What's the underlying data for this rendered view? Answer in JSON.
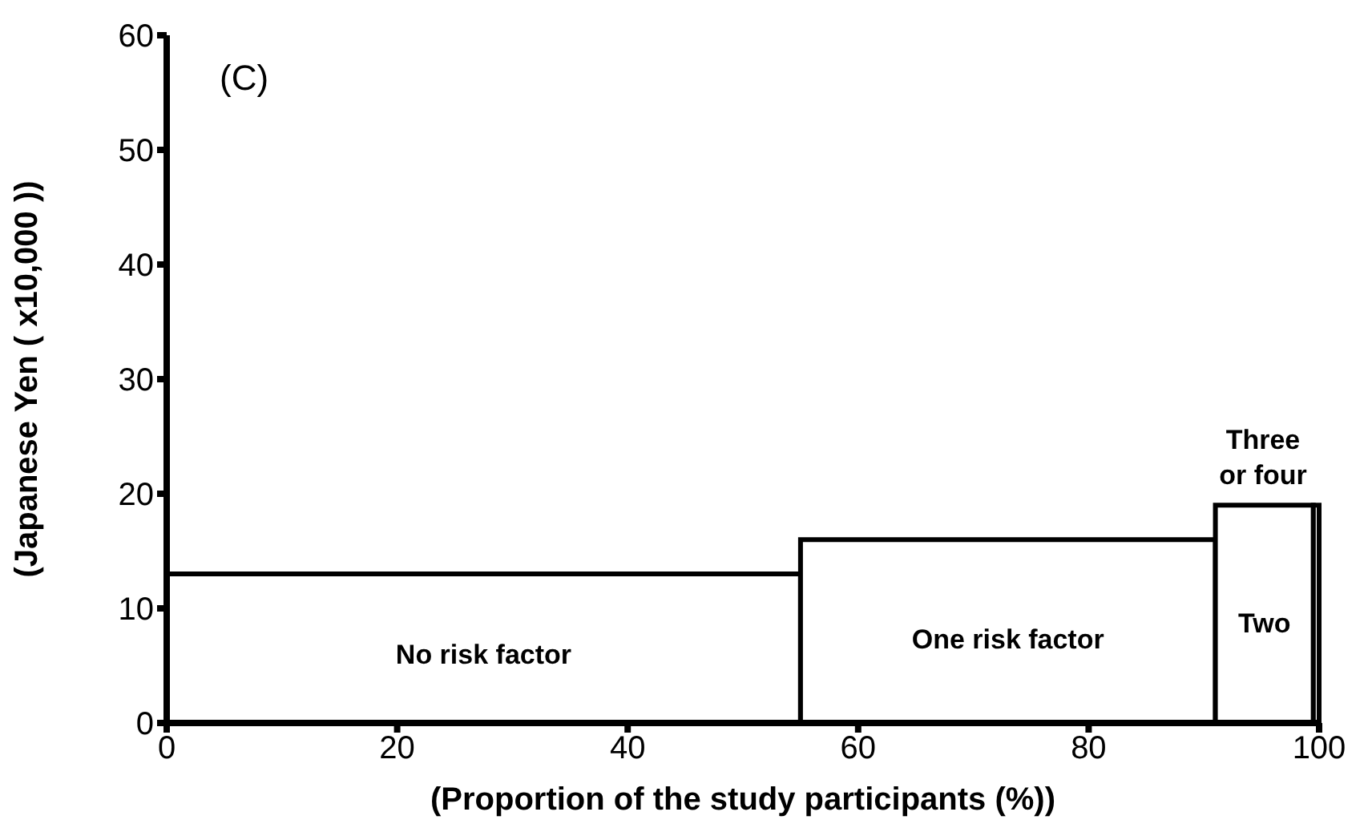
{
  "chart_data": {
    "type": "histogram",
    "title": "(C)",
    "xlabel": "(Proportion of the study participants (%))",
    "ylabel": "(Japanese Yen ( x10,000 ))",
    "bins": [
      0,
      55,
      91,
      99.5,
      100
    ],
    "values": [
      13,
      16,
      19,
      19
    ],
    "color": "#ffffff",
    "xlim": [
      0,
      100
    ],
    "xticks": [
      0,
      20,
      40,
      60,
      80,
      100
    ],
    "ylim": [
      0,
      60
    ],
    "yticks": [
      0,
      10,
      20,
      30,
      40,
      50,
      60
    ],
    "annotations": [
      "No risk factor",
      "One risk factor",
      "Two",
      "Three or four"
    ]
  }
}
